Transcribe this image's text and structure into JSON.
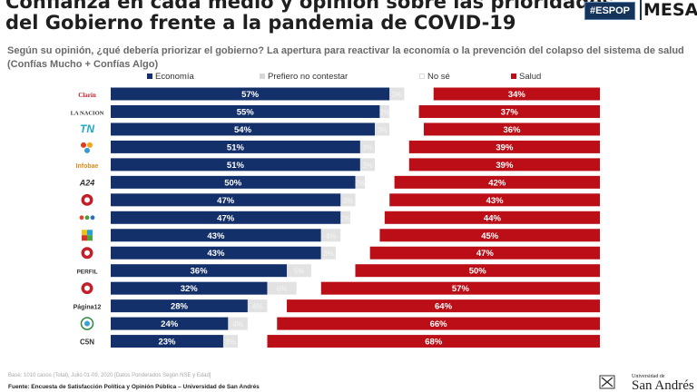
{
  "header": {
    "title_line1": "Confianza en cada medio y opinión sobre las prioridades",
    "title_line2": "del Gobierno frente a la pandemia de COVID-19",
    "badge_espop": "#ESPOP",
    "badge_mesa": "MESA"
  },
  "subtitle": "Según su opinión, ¿qué debería priorizar el gobierno? La apertura para reactivar la economía o la prevención del colapso del sistema de salud (Confías Mucho + Confías Algo)",
  "footer": {
    "base_note": "Base: 1010 casos (Total), Julio 01-09, 2020 [Datos Ponderados Según NSE y Edad]",
    "source": "Fuente: Encuesta de Satisfacción Política y Opinión Pública – Universidad de San Andrés",
    "university_small": "Universidad de",
    "university_big": "San Andrés"
  },
  "colors": {
    "economia": "#14306b",
    "prefiero": "#e2e2e2",
    "nose": "#ffffff",
    "salud": "#bb0e16"
  },
  "chart_data": {
    "type": "bar",
    "stacked": true,
    "orientation": "horizontal",
    "title": "",
    "xlim": [
      0,
      100
    ],
    "legend_position": "top",
    "categories": [
      "Clarín",
      "LA NACION",
      "TN",
      "Telefe",
      "Infobae",
      "A24",
      "Canal 26",
      "Canal 9",
      "América",
      "C5N",
      "Perfil",
      "Página 12 logo",
      "Página12",
      "TV Pública",
      "CSN"
    ],
    "category_labels": [
      "Clarín",
      "LA NACION",
      "TN",
      "",
      "Infobae",
      "A24",
      "",
      "",
      "",
      "",
      "PERFIL",
      "",
      "Página12",
      "",
      "C5N"
    ],
    "series": [
      {
        "name": "Economía",
        "values": [
          57,
          55,
          54,
          51,
          51,
          50,
          47,
          47,
          43,
          43,
          36,
          32,
          28,
          24,
          23
        ]
      },
      {
        "name": "Prefiero no contestar",
        "values": [
          3,
          2,
          3,
          3,
          3,
          2,
          3,
          2,
          4,
          3,
          5,
          6,
          4,
          4,
          3
        ]
      },
      {
        "name": "No sé",
        "values": [
          6,
          6,
          7,
          7,
          7,
          6,
          7,
          7,
          8,
          7,
          9,
          5,
          4,
          6,
          6
        ]
      },
      {
        "name": "Salud",
        "values": [
          34,
          37,
          36,
          39,
          39,
          42,
          43,
          44,
          45,
          47,
          50,
          57,
          64,
          66,
          68
        ]
      }
    ],
    "value_labels": {
      "economia": [
        "57%",
        "55%",
        "54%",
        "51%",
        "51%",
        "50%",
        "47%",
        "47%",
        "43%",
        "43%",
        "36%",
        "32%",
        "28%",
        "24%",
        "23%"
      ],
      "prefiero": [
        "3%",
        "2%",
        "3%",
        "3%",
        "3%",
        "2%",
        "3%",
        "2%",
        "4%",
        "3%",
        "5%",
        "6%",
        "4%",
        "4%",
        "3%"
      ],
      "salud": [
        "34%",
        "37%",
        "36%",
        "39%",
        "39%",
        "42%",
        "43%",
        "44%",
        "45%",
        "47%",
        "50%",
        "57%",
        "64%",
        "66%",
        "68%"
      ]
    }
  }
}
